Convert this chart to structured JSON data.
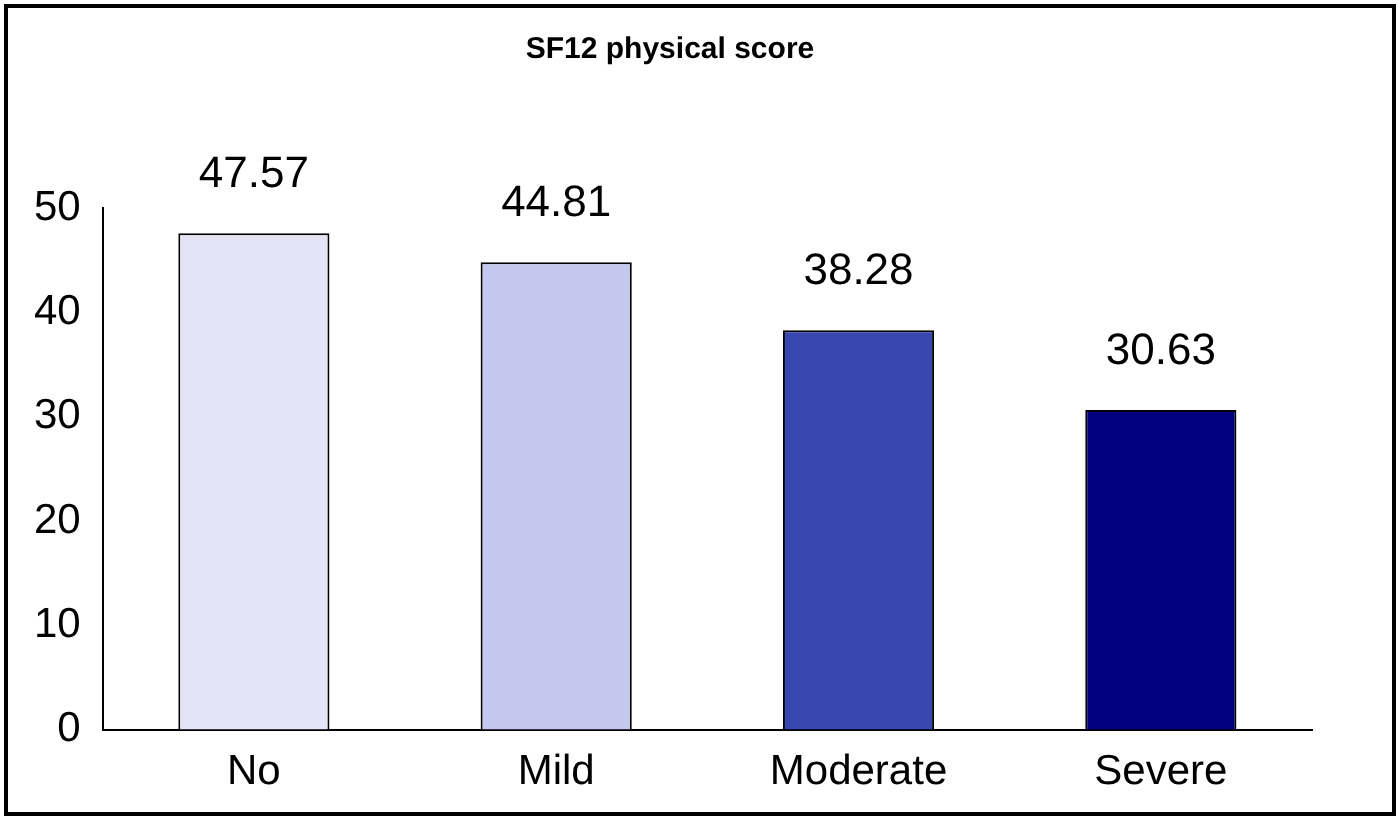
{
  "chart_data": {
    "type": "bar",
    "title": "SF12 physical score",
    "categories": [
      "No",
      "Mild",
      "Moderate",
      "Severe"
    ],
    "values": [
      47.57,
      44.81,
      38.28,
      30.63
    ],
    "colors": [
      "#e4e4f6",
      "#c4c8ee",
      "#3848b0",
      "#000080"
    ],
    "ylim": [
      0,
      50
    ],
    "yticks": [
      0,
      10,
      20,
      30,
      40,
      50
    ],
    "grid": false,
    "legend": false,
    "data_labels": true
  }
}
